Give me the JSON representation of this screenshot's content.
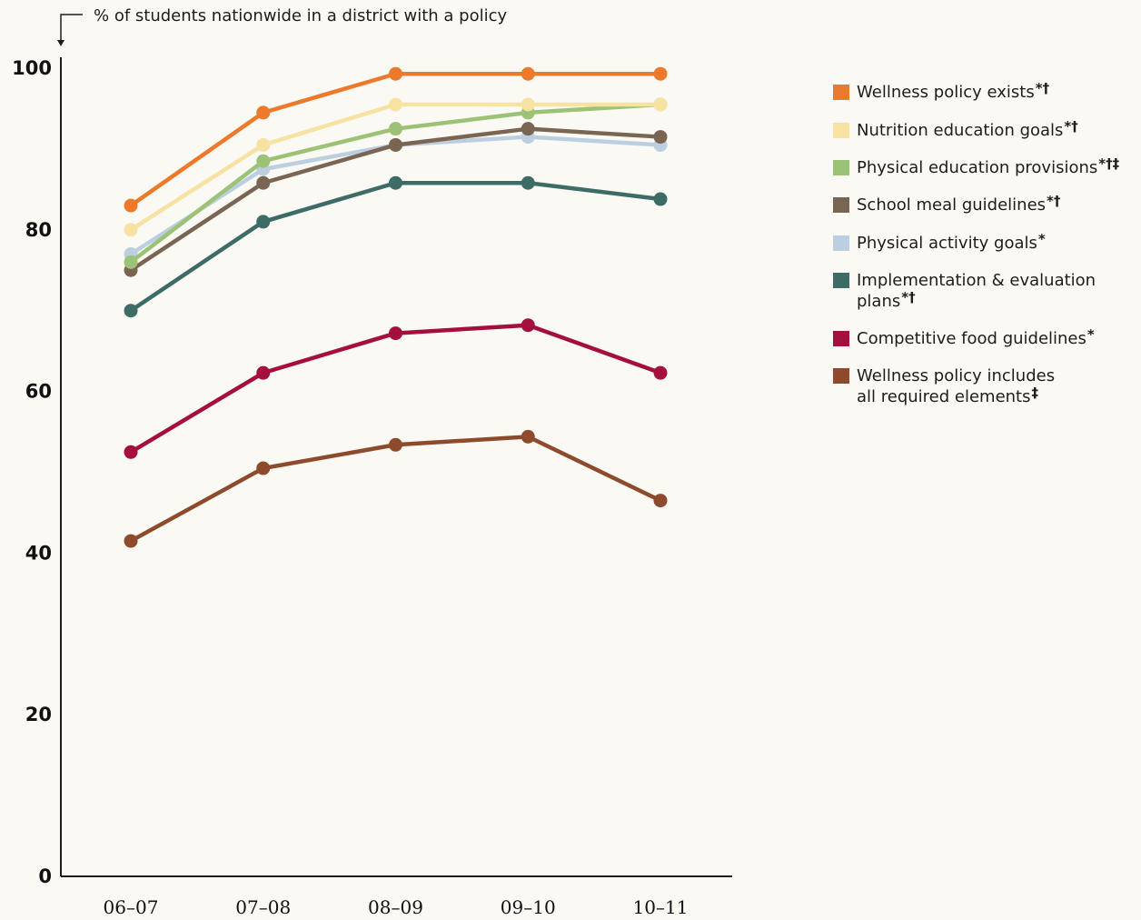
{
  "chart_data": {
    "type": "line",
    "ylabel": "% of students nationwide in a district with a policy",
    "xlabel": "",
    "categories": [
      "06–07",
      "07–08",
      "08–09",
      "09–10",
      "10–11"
    ],
    "ylim": [
      0,
      100
    ],
    "yticks": [
      0,
      20,
      40,
      60,
      80,
      100
    ],
    "grid": false,
    "legend_position": "right",
    "series": [
      {
        "name": "Wellness policy exists",
        "marks": "*†",
        "color": "#ec7a2a",
        "values": [
          83,
          94.5,
          99.3,
          99.3,
          99.3
        ]
      },
      {
        "name": "Nutrition education goals",
        "marks": "*†",
        "color": "#f8e2a2",
        "values": [
          80,
          90.5,
          95.5,
          95.5,
          95.5
        ]
      },
      {
        "name": "Physical education provisions",
        "marks": "*†‡",
        "color": "#9cc276",
        "values": [
          76,
          88.5,
          92.5,
          94.5,
          95.5
        ]
      },
      {
        "name": "School meal guidelines",
        "marks": "*†",
        "color": "#7a6553",
        "values": [
          75,
          85.8,
          90.5,
          92.5,
          91.5
        ]
      },
      {
        "name": "Physical activity goals",
        "marks": "*",
        "color": "#bccfe0",
        "values": [
          77,
          87.5,
          90.5,
          91.5,
          90.5
        ]
      },
      {
        "name": "Implementation & evaluation plans",
        "marks": "*†",
        "color": "#3d6b66",
        "values": [
          70,
          81,
          85.8,
          85.8,
          83.8
        ]
      },
      {
        "name": "Competitive food guidelines",
        "marks": "*",
        "color": "#a50f3c",
        "values": [
          52.5,
          62.3,
          67.2,
          68.2,
          62.3
        ]
      },
      {
        "name": "Wellness policy includes all required elements",
        "marks": "‡",
        "color": "#8e4a2d",
        "values": [
          41.5,
          50.5,
          53.4,
          54.4,
          46.5
        ]
      }
    ]
  }
}
